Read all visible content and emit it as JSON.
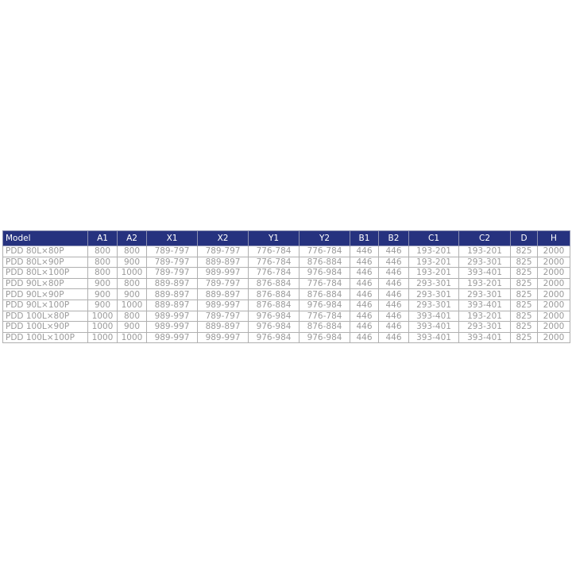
{
  "table": {
    "headers": [
      "Model",
      "A1",
      "A2",
      "X1",
      "X2",
      "Y1",
      "Y2",
      "B1",
      "B2",
      "C1",
      "C2",
      "D",
      "H"
    ],
    "rows": [
      [
        "PDD 80L×80P",
        "800",
        "800",
        "789-797",
        "789-797",
        "776-784",
        "776-784",
        "446",
        "446",
        "193-201",
        "193-201",
        "825",
        "2000"
      ],
      [
        "PDD 80L×90P",
        "800",
        "900",
        "789-797",
        "889-897",
        "776-784",
        "876-884",
        "446",
        "446",
        "193-201",
        "293-301",
        "825",
        "2000"
      ],
      [
        "PDD 80L×100P",
        "800",
        "1000",
        "789-797",
        "989-997",
        "776-784",
        "976-984",
        "446",
        "446",
        "193-201",
        "393-401",
        "825",
        "2000"
      ],
      [
        "PDD 90L×80P",
        "900",
        "800",
        "889-897",
        "789-797",
        "876-884",
        "776-784",
        "446",
        "446",
        "293-301",
        "193-201",
        "825",
        "2000"
      ],
      [
        "PDD 90L×90P",
        "900",
        "900",
        "889-897",
        "889-897",
        "876-884",
        "876-884",
        "446",
        "446",
        "293-301",
        "293-301",
        "825",
        "2000"
      ],
      [
        "PDD 90L×100P",
        "900",
        "1000",
        "889-897",
        "989-997",
        "876-884",
        "976-984",
        "446",
        "446",
        "293-301",
        "393-401",
        "825",
        "2000"
      ],
      [
        "PDD 100L×80P",
        "1000",
        "800",
        "989-997",
        "789-797",
        "976-984",
        "776-784",
        "446",
        "446",
        "393-401",
        "193-201",
        "825",
        "2000"
      ],
      [
        "PDD 100L×90P",
        "1000",
        "900",
        "989-997",
        "889-897",
        "976-984",
        "876-884",
        "446",
        "446",
        "393-401",
        "293-301",
        "825",
        "2000"
      ],
      [
        "PDD 100L×100P",
        "1000",
        "1000",
        "989-997",
        "989-997",
        "976-984",
        "976-984",
        "446",
        "446",
        "393-401",
        "393-401",
        "825",
        "2000"
      ]
    ],
    "header_color": "#26327f"
  }
}
